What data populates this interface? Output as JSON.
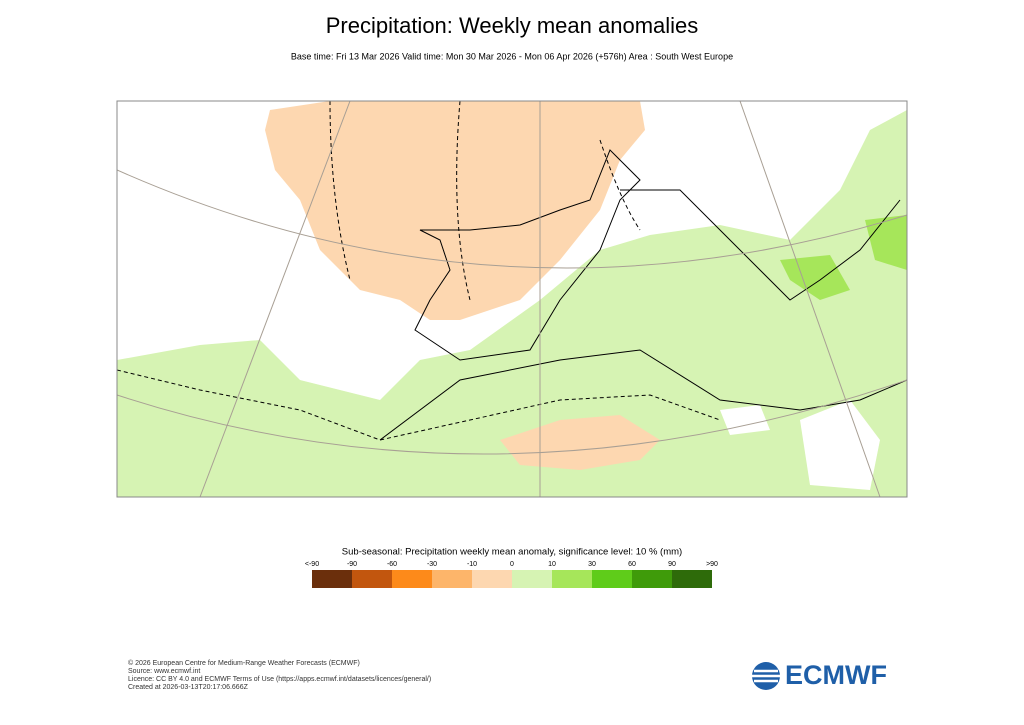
{
  "header": {
    "title": "Precipitation: Weekly mean anomalies",
    "subtitle": "Base time: Fri 13 Mar 2026 Valid time: Mon 30 Mar 2026 - Mon 06 Apr 2026 (+576h) Area : South West Europe"
  },
  "legend": {
    "title": "Sub-seasonal: Precipitation weekly mean anomaly, significance level: 10 % (mm)",
    "labels": [
      "<-90",
      "-90",
      "-60",
      "-30",
      "-10",
      "0",
      "10",
      "30",
      "60",
      "90",
      ">90"
    ],
    "colors": [
      "#6b2f0c",
      "#c2560e",
      "#fd8a1a",
      "#fdb56a",
      "#fdd7b0",
      "#d6f3b3",
      "#a6e65a",
      "#5fcc1a",
      "#3f9b0a",
      "#2e6b0a"
    ]
  },
  "footer": {
    "lines": [
      "© 2026 European Centre for Medium-Range Weather Forecasts (ECMWF)",
      "Source: www.ecmwf.int",
      "Licence: CC BY 4.0 and ECMWF Terms of Use (https://apps.ecmwf.int/datasets/licences/general/)",
      "Created at 2026-03-13T20:17:06.666Z"
    ],
    "logo": "ECMWF"
  }
}
